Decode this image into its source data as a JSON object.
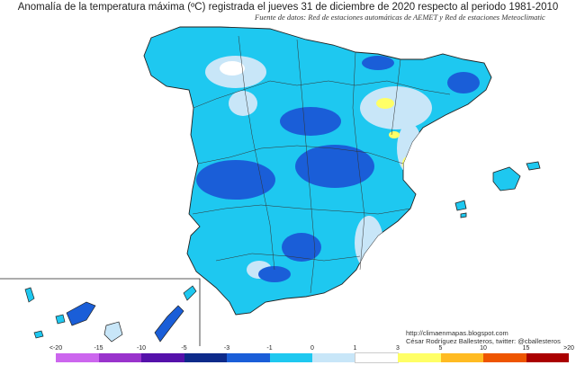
{
  "title": "Anomalía de la temperatura máxima (ºC) registrada el jueves 31 de diciembre de 2020 respecto al periodo 1981-2010",
  "subtitle": "Fuente de datos: Red de estaciones automáticas de AEMET y Red de estaciones Meteoclimatic",
  "credits": {
    "blog": "http://climaenmapas.blogspot.com",
    "author": "César Rodríguez Ballesteros, twitter: @cballesteros"
  },
  "legend": {
    "ticks": [
      "<-20",
      "-15",
      "-10",
      "-5",
      "-3",
      "-1",
      "0",
      "1",
      "3",
      "5",
      "10",
      "15",
      ">20"
    ],
    "colors": [
      "#cc66ee",
      "#9933cc",
      "#5511aa",
      "#0d2a8a",
      "#1a5ed8",
      "#1ec8f0",
      "#c8e6f8",
      "#ffffff",
      "#ffff66",
      "#ffbb22",
      "#ee5500",
      "#aa0000",
      "#6b3a00"
    ]
  },
  "regions": {
    "peninsula": "Península Ibérica (España)",
    "balearics": "Islas Baleares",
    "canaries": "Islas Canarias"
  }
}
